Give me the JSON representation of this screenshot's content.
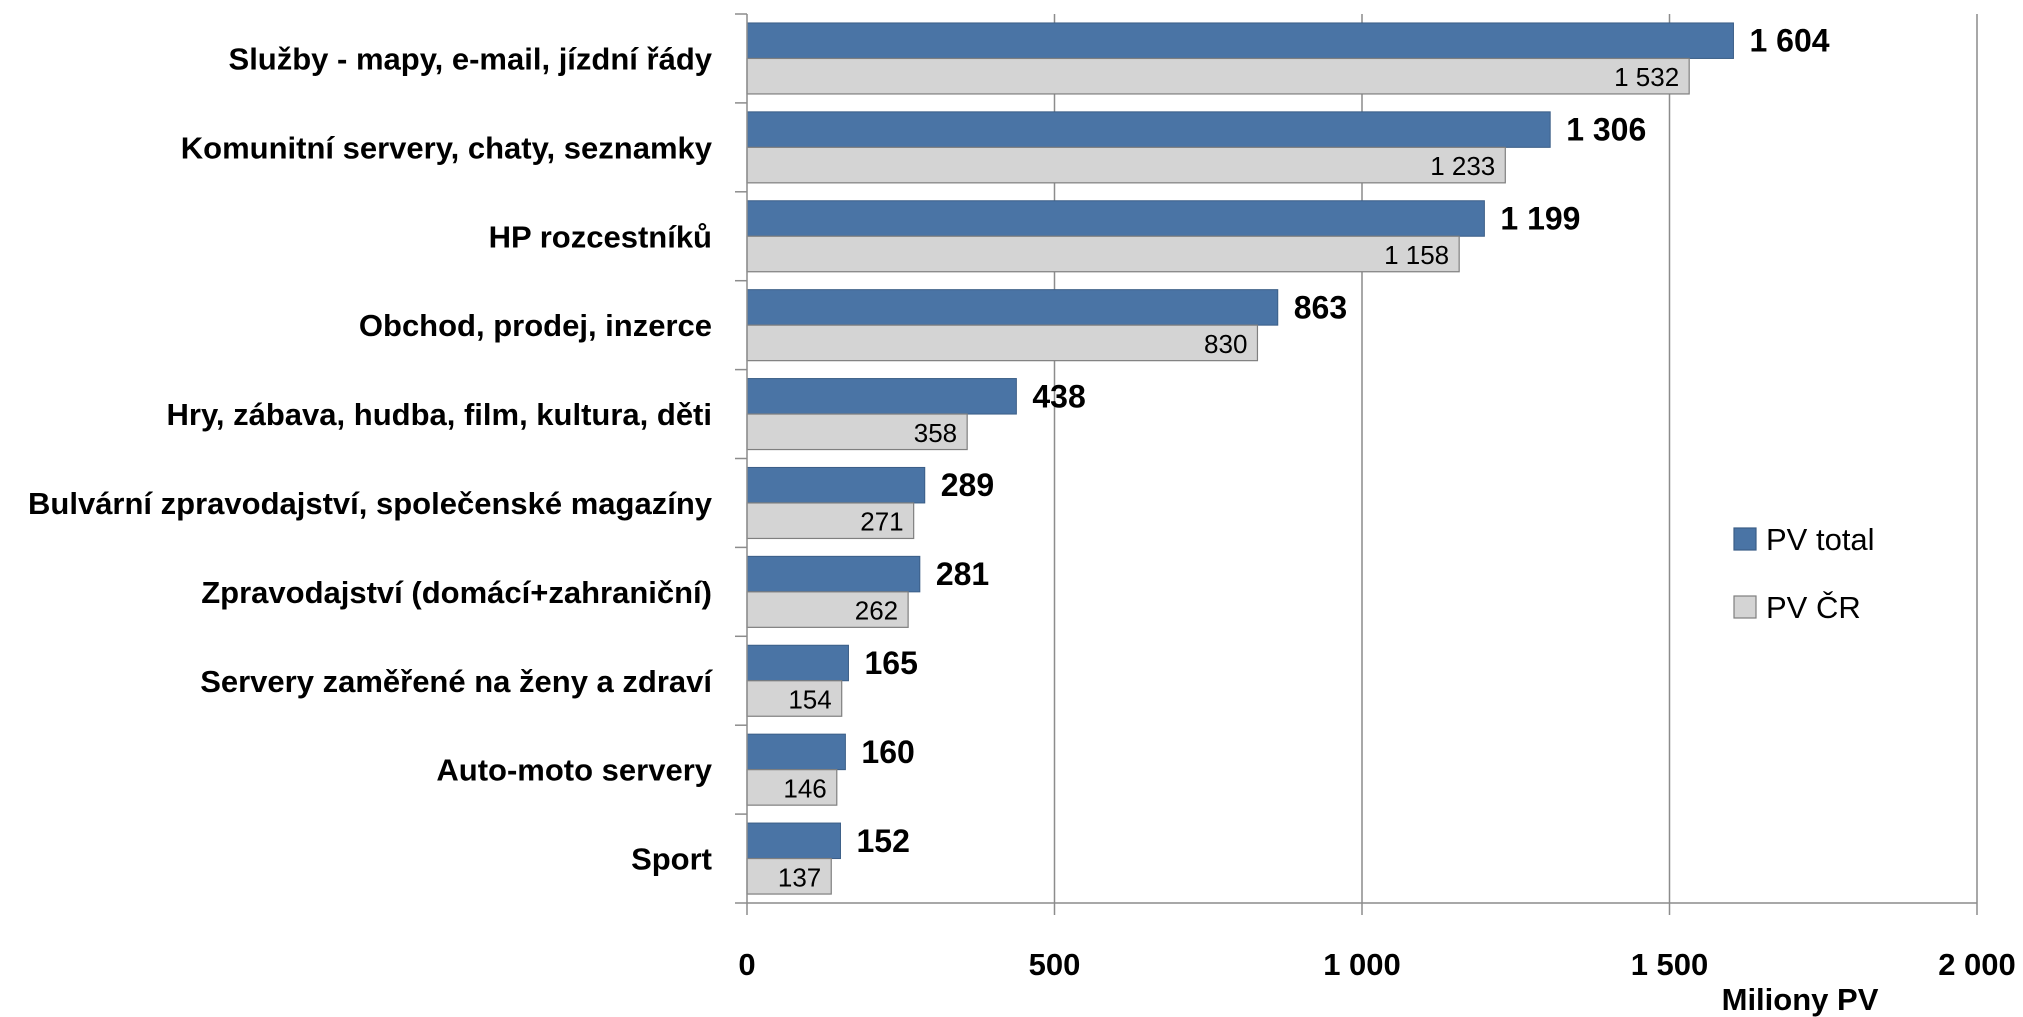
{
  "chart_data": {
    "type": "bar",
    "orientation": "horizontal",
    "title": "",
    "xlabel": "Miliony PV",
    "ylabel": "",
    "xlim": [
      0,
      2000
    ],
    "xticks": [
      0,
      500,
      1000,
      1500,
      2000
    ],
    "xtick_labels": [
      "0",
      "500",
      "1 000",
      "1 500",
      "2 000"
    ],
    "grid": "vertical gridlines on",
    "legend_position": "right",
    "categories": [
      "Služby - mapy, e-mail, jízdní řády",
      "Komunitní servery, chaty, seznamky",
      "HP rozcestníků",
      "Obchod, prodej, inzerce",
      "Hry, zábava, hudba, film, kultura, děti",
      "Bulvární zpravodajství, společenské magazíny",
      "Zpravodajství (domácí+zahraniční)",
      "Servery zaměřené na ženy a zdraví",
      "Auto-moto servery",
      "Sport"
    ],
    "series": [
      {
        "name": "PV total",
        "color": "#4a74a5",
        "values": [
          1604,
          1306,
          1199,
          863,
          438,
          289,
          281,
          165,
          160,
          152
        ],
        "value_labels": [
          "1 604",
          "1 306",
          "1 199",
          "863",
          "438",
          "289",
          "281",
          "165",
          "160",
          "152"
        ]
      },
      {
        "name": "PV ČR",
        "color": "#d4d4d4",
        "values": [
          1532,
          1233,
          1158,
          830,
          358,
          271,
          262,
          154,
          146,
          137
        ],
        "value_labels": [
          "1 532",
          "1 233",
          "1 158",
          "830",
          "358",
          "271",
          "262",
          "154",
          "146",
          "137"
        ]
      }
    ]
  }
}
